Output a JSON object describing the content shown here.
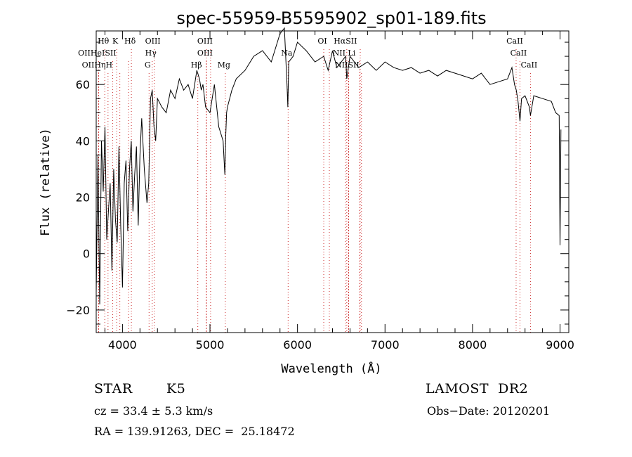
{
  "chart_data": {
    "type": "line",
    "title": "spec-55959-B5595902_sp01-189.fits",
    "xlabel": "Wavelength (Å)",
    "ylabel": "Flux (relative)",
    "xlim": [
      3700,
      9100
    ],
    "ylim": [
      -28,
      79
    ],
    "x_ticks": [
      4000,
      5000,
      6000,
      7000,
      8000,
      9000
    ],
    "x_tick_labels": [
      "4000",
      "5000",
      "6000",
      "7000",
      "8000",
      "9000"
    ],
    "y_ticks": [
      -20,
      0,
      20,
      40,
      60
    ],
    "y_tick_labels": [
      "−20",
      "0",
      "20",
      "40",
      "60"
    ],
    "grid": false,
    "series": [
      {
        "x": [
          3700,
          3720,
          3740,
          3760,
          3780,
          3800,
          3820,
          3840,
          3860,
          3880,
          3900,
          3920,
          3940,
          3960,
          3980,
          4000,
          4020,
          4040,
          4060,
          4080,
          4100,
          4120,
          4140,
          4160,
          4180,
          4200,
          4220,
          4250,
          4280,
          4300,
          4320,
          4340,
          4360,
          4380,
          4400,
          4450,
          4500,
          4550,
          4600,
          4650,
          4700,
          4750,
          4800,
          4850,
          4880,
          4900,
          4920,
          4950,
          5000,
          5050,
          5100,
          5150,
          5170,
          5180,
          5190,
          5200,
          5250,
          5300,
          5400,
          5500,
          5600,
          5700,
          5800,
          5850,
          5880,
          5890,
          5900,
          5950,
          6000,
          6100,
          6200,
          6300,
          6350,
          6400,
          6450,
          6500,
          6550,
          6563,
          6600,
          6700,
          6800,
          6900,
          7000,
          7100,
          7200,
          7300,
          7400,
          7500,
          7600,
          7700,
          7800,
          7900,
          8000,
          8100,
          8200,
          8300,
          8400,
          8450,
          8480,
          8500,
          8520,
          8542,
          8560,
          8600,
          8650,
          8662,
          8700,
          8800,
          8900,
          8950,
          8990,
          9000,
          9010
        ],
        "y": [
          -14,
          35,
          -18,
          40,
          22,
          45,
          5,
          15,
          25,
          -6,
          30,
          12,
          4,
          38,
          10,
          -12,
          25,
          33,
          8,
          30,
          40,
          15,
          28,
          38,
          10,
          35,
          48,
          30,
          18,
          25,
          55,
          58,
          45,
          40,
          55,
          52,
          50,
          58,
          55,
          62,
          58,
          60,
          55,
          65,
          62,
          58,
          60,
          52,
          50,
          60,
          45,
          40,
          28,
          42,
          50,
          52,
          58,
          62,
          65,
          70,
          72,
          68,
          78,
          80,
          60,
          52,
          68,
          70,
          75,
          72,
          68,
          70,
          65,
          72,
          66,
          68,
          70,
          62,
          70,
          66,
          68,
          65,
          68,
          66,
          65,
          66,
          64,
          65,
          63,
          65,
          64,
          63,
          62,
          64,
          60,
          61,
          62,
          66,
          60,
          58,
          54,
          47,
          55,
          56,
          52,
          49,
          56,
          55,
          54,
          50,
          49,
          3,
          44
        ]
      }
    ],
    "lines": {
      "H_theta": {
        "wavelengths": [
          3798
        ],
        "label": "Hθ",
        "row": 1
      },
      "K": {
        "wavelengths": [
          3934
        ],
        "label": "K",
        "row": 1
      },
      "H_delta": {
        "wavelengths": [
          4102
        ],
        "label": "Hδ",
        "row": 1
      },
      "OIII_top": {
        "wavelengths": [
          4363
        ],
        "label": "OIII",
        "row": 1
      },
      "OIII_mid": {
        "wavelengths": [
          4959,
          5007
        ],
        "label": "OIII",
        "row": 1
      },
      "OI": {
        "wavelengths": [
          6300,
          6364
        ],
        "label": "OI",
        "row": 1
      },
      "H_alpha_SII": {
        "wavelengths": [
          6563,
          6717
        ],
        "label": "HαSII",
        "row": 1
      },
      "CaII_top": {
        "wavelengths": [
          8498
        ],
        "label": "CaII",
        "row": 1
      },
      "OII_HeI_SII": {
        "wavelengths": [
          3727,
          3889,
          4069
        ],
        "label": "OIIHeISII",
        "row": 2
      },
      "H_gamma": {
        "wavelengths": [
          4340
        ],
        "label": "Hγ",
        "row": 2
      },
      "OIII_2": {
        "wavelengths": [
          4959
        ],
        "label": "OIII",
        "row": 2
      },
      "Na": {
        "wavelengths": [
          5893
        ],
        "label": "Na",
        "row": 2
      },
      "NII_Li": {
        "wavelengths": [
          6548,
          6584,
          6708
        ],
        "label": "NII Li",
        "row": 2
      },
      "CaII_mid": {
        "wavelengths": [
          8542
        ],
        "label": "CaII",
        "row": 2
      },
      "OII_H_eta_H": {
        "wavelengths": [
          3727,
          3835,
          3970
        ],
        "label": "OIIHηH",
        "row": 3
      },
      "G": {
        "wavelengths": [
          4304
        ],
        "label": "G",
        "row": 3
      },
      "H_beta": {
        "wavelengths": [
          4861
        ],
        "label": "Hβ",
        "row": 3
      },
      "Mg": {
        "wavelengths": [
          5175
        ],
        "label": "Mg",
        "row": 3
      },
      "NII_SII": {
        "wavelengths": [
          6584,
          6731
        ],
        "label": "NIISII",
        "row": 3
      },
      "CaII_low": {
        "wavelengths": [
          8662
        ],
        "label": "CaII",
        "row": 3
      }
    }
  },
  "info": {
    "class_label": "STAR",
    "subclass": "K5",
    "survey": "LAMOST  DR2",
    "velocity": "cz = 33.4 ± 5.3 km/s",
    "obs_date": "Obs−Date: 20120201",
    "coords": "RA = 139.91263, DEC =  25.18472"
  },
  "colors": {
    "spectrum": "#000000",
    "line_markers": "#cc2a2a",
    "axes": "#000000"
  }
}
